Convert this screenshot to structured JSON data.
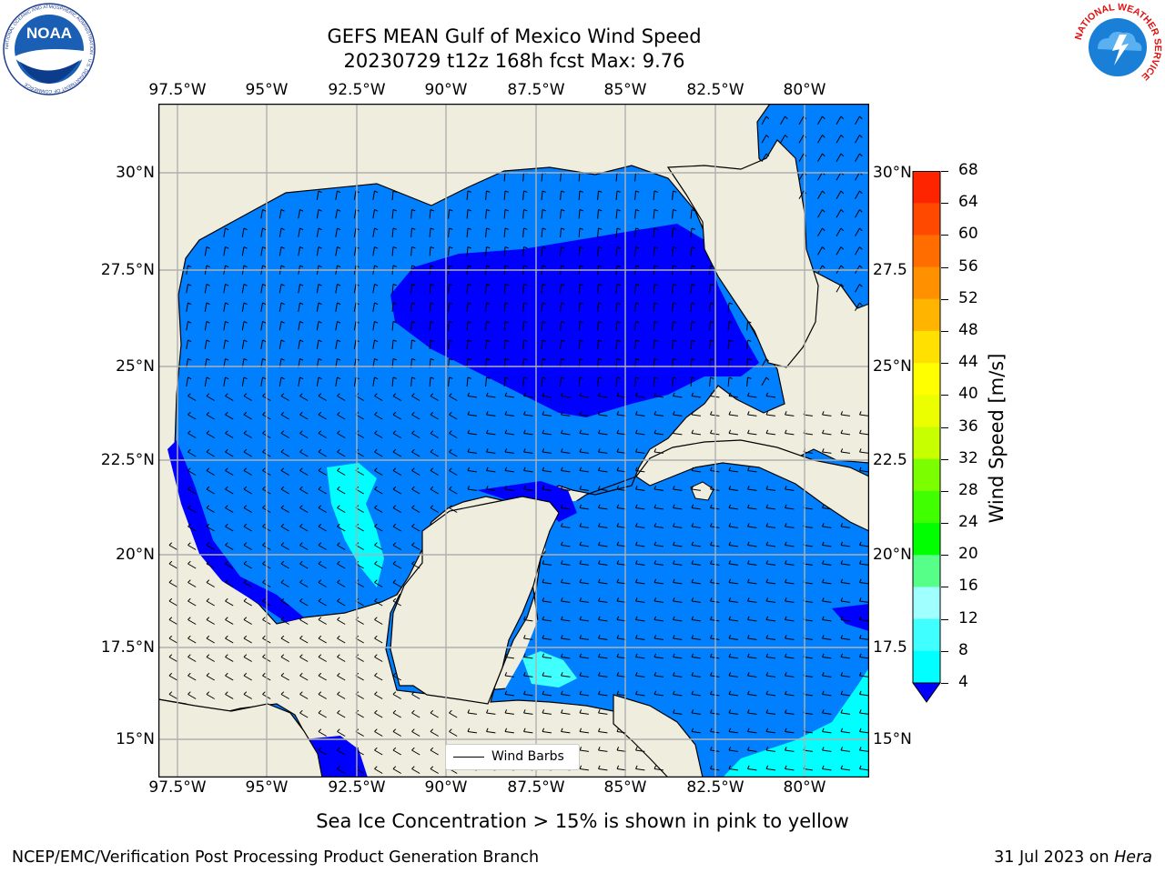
{
  "title": {
    "line1": "GEFS MEAN Gulf of Mexico Wind Speed",
    "line2": "20230729 t12z 168h fcst   Max: 9.76"
  },
  "logos": {
    "left": {
      "name": "NOAA",
      "text": "NOAA",
      "ring_text": "NATIONAL OCEANIC AND ATMOSPHERIC ADMINISTRATION · U.S. DEPARTMENT OF COMMERCE"
    },
    "right": {
      "name": "National Weather Service",
      "ring_text": "NATIONAL WEATHER SERVICE"
    }
  },
  "map": {
    "lon_ticks": [
      "97.5°W",
      "95°W",
      "92.5°W",
      "90°W",
      "87.5°W",
      "85°W",
      "82.5°W",
      "80°W"
    ],
    "lat_ticks_left": [
      "30°N",
      "27.5°N",
      "25°N",
      "22.5°N",
      "20°N",
      "17.5°N",
      "15°N"
    ],
    "lat_ticks_right": [
      "30°N",
      "27.5",
      "25°N",
      "22.5",
      "20°N",
      "17.5",
      "15°N"
    ],
    "legend_label": "Wind Barbs",
    "land_color": "#efedde",
    "ocean_colors": {
      "lt4": "#0000ff",
      "4to8": "#0080ff",
      "8to12": "#00ffff",
      "12to16": "#40ffff"
    }
  },
  "colorbar": {
    "label": "Wind Speed [m/s]",
    "levels": [
      "68",
      "64",
      "60",
      "56",
      "52",
      "48",
      "44",
      "40",
      "36",
      "32",
      "28",
      "24",
      "20",
      "16",
      "12",
      "8",
      "4"
    ],
    "colors": [
      "#ff0000",
      "#ff2400",
      "#ff4800",
      "#ff6c00",
      "#ff9100",
      "#ffb500",
      "#ffe000",
      "#ffff00",
      "#ecff00",
      "#c8ff00",
      "#7bff00",
      "#40ff00",
      "#00ff00",
      "#55ff88",
      "#a0ffff",
      "#40ffff",
      "#00ffff",
      "#0080ff"
    ],
    "extend_color": "#0000ff"
  },
  "subtitle": "Sea Ice Concentration > 15% is shown in pink to yellow",
  "footer": {
    "left": "NCEP/EMC/Verification Post Processing Product Generation Branch",
    "right_date": "31 Jul 2023 on ",
    "right_machine": "Hera"
  }
}
